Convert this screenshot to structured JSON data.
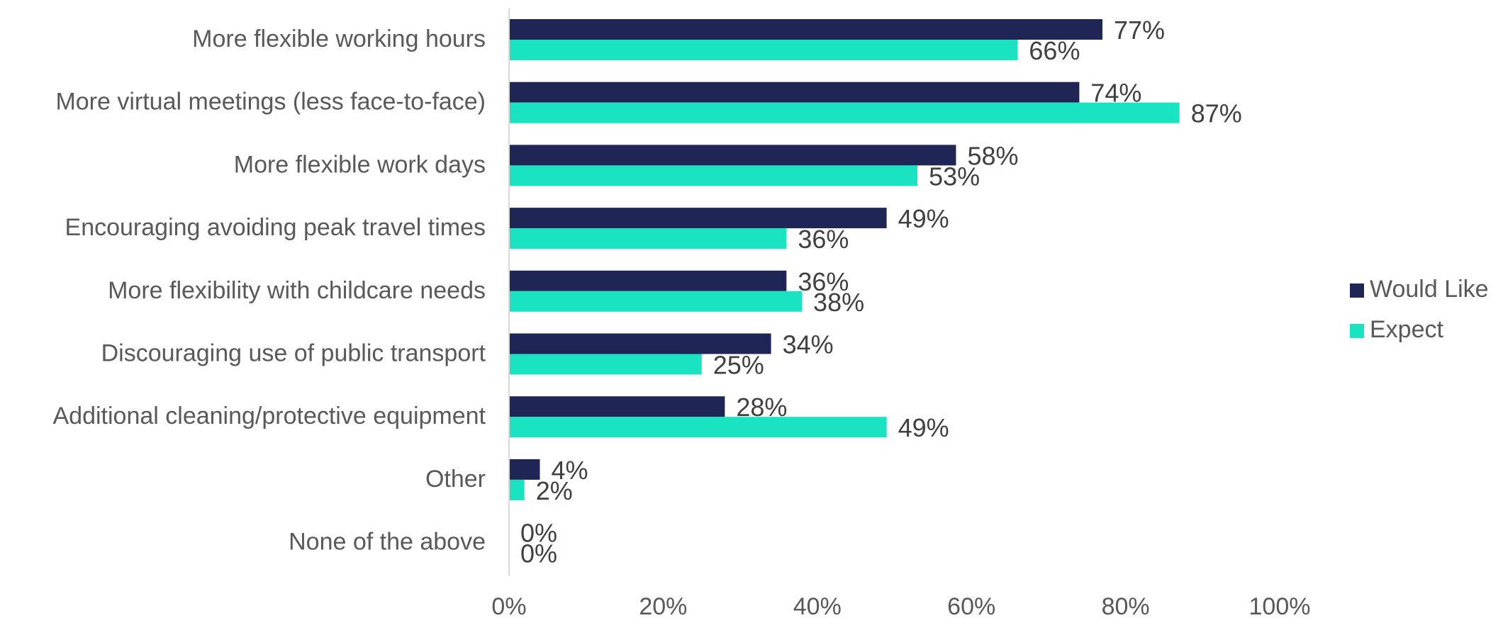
{
  "chart_data": {
    "type": "bar",
    "orientation": "horizontal",
    "categories": [
      "More flexible working hours",
      "More virtual meetings (less face-to-face)",
      "More flexible work days",
      "Encouraging avoiding peak travel times",
      "More flexibility with childcare needs ",
      "Discouraging use of public transport ",
      "Additional cleaning/protective equipment",
      "Other",
      "None of the above"
    ],
    "series": [
      {
        "name": "Would Like",
        "color": "#1f2656",
        "values": [
          77,
          74,
          58,
          49,
          36,
          34,
          28,
          4,
          0
        ],
        "labels": [
          "77%",
          "74%",
          "58%",
          "49%",
          "36%",
          "34%",
          "28%",
          "4%",
          "0%"
        ]
      },
      {
        "name": "Expect",
        "color": "#1ae3c2",
        "values": [
          66,
          87,
          53,
          36,
          38,
          25,
          49,
          2,
          0
        ],
        "labels": [
          "66%",
          "87%",
          "53%",
          "36%",
          "38%",
          "25%",
          "49%",
          "2%",
          "0%"
        ]
      }
    ],
    "xlim": [
      0,
      100
    ],
    "xticks": [
      0,
      20,
      40,
      60,
      80,
      100
    ],
    "xtick_labels": [
      "0%",
      "20%",
      "40%",
      "60%",
      "80%",
      "100%"
    ],
    "title": "",
    "xlabel": "",
    "ylabel": "",
    "grid": false,
    "legend": {
      "position": "right",
      "entries": [
        "Would Like",
        "Expect"
      ]
    }
  }
}
